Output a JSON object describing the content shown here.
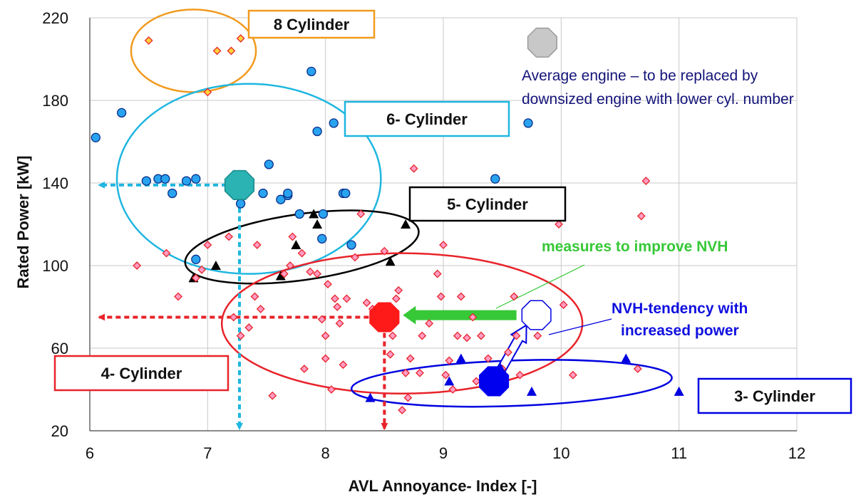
{
  "chart_data": {
    "type": "scatter",
    "title": "",
    "xlabel": "AVL Annoyance- Index [-]",
    "ylabel": "Rated Power [kW]",
    "xlim": [
      6,
      12
    ],
    "ylim": [
      20,
      220
    ],
    "xticks": [
      "6",
      "7",
      "8",
      "9",
      "10",
      "11",
      "12"
    ],
    "yticks": [
      "20",
      "60",
      "100",
      "140",
      "180",
      "220"
    ],
    "grid": true,
    "colors": {
      "four": "#e8232a",
      "four_fill": "#ff9cc4",
      "five": "#000000",
      "six": "#1fb6e0",
      "six_fill": "#29a3ef",
      "eight": "#f29a1e",
      "eight_fill": "#ffd23a",
      "three": "#0000e0",
      "note_blue": "#14147a",
      "nvh_green": "#37c837",
      "nvh_blue": "#1010e0"
    },
    "series": [
      {
        "name": "8 Cylinder",
        "marker": "diamond",
        "points": [
          [
            6.5,
            209
          ],
          [
            7.0,
            184
          ],
          [
            7.08,
            204
          ],
          [
            7.2,
            204
          ],
          [
            7.28,
            210
          ]
        ]
      },
      {
        "name": "6- Cylinder",
        "marker": "circle",
        "points": [
          [
            6.05,
            162
          ],
          [
            6.27,
            174
          ],
          [
            6.48,
            141
          ],
          [
            6.58,
            142
          ],
          [
            6.64,
            142
          ],
          [
            6.7,
            135
          ],
          [
            6.82,
            141
          ],
          [
            6.9,
            142
          ],
          [
            6.9,
            103
          ],
          [
            7.28,
            130
          ],
          [
            7.47,
            135
          ],
          [
            7.52,
            149
          ],
          [
            7.62,
            132
          ],
          [
            7.68,
            134
          ],
          [
            7.68,
            135
          ],
          [
            7.78,
            125
          ],
          [
            7.88,
            194
          ],
          [
            7.93,
            165
          ],
          [
            7.97,
            113
          ],
          [
            7.98,
            125
          ],
          [
            8.07,
            169
          ],
          [
            8.15,
            135
          ],
          [
            8.17,
            135
          ],
          [
            8.22,
            110
          ],
          [
            9.44,
            142
          ],
          [
            9.72,
            169
          ]
        ]
      },
      {
        "name": "5- Cylinder",
        "marker": "triangle",
        "points": [
          [
            6.88,
            94
          ],
          [
            7.07,
            100
          ],
          [
            7.62,
            95
          ],
          [
            7.75,
            110
          ],
          [
            7.9,
            125
          ],
          [
            7.93,
            120
          ],
          [
            8.55,
            102
          ],
          [
            8.68,
            120
          ]
        ]
      },
      {
        "name": "4- Cylinder",
        "marker": "diamond",
        "points": [
          [
            6.4,
            100
          ],
          [
            6.65,
            106
          ],
          [
            6.75,
            85
          ],
          [
            6.9,
            94
          ],
          [
            6.95,
            98
          ],
          [
            7.0,
            110
          ],
          [
            7.18,
            114
          ],
          [
            7.22,
            75
          ],
          [
            7.28,
            66
          ],
          [
            7.35,
            70
          ],
          [
            7.42,
            110
          ],
          [
            7.4,
            85
          ],
          [
            7.45,
            79
          ],
          [
            7.55,
            37
          ],
          [
            7.65,
            96
          ],
          [
            7.7,
            100
          ],
          [
            7.72,
            114
          ],
          [
            7.8,
            106
          ],
          [
            7.82,
            50
          ],
          [
            7.87,
            97
          ],
          [
            7.93,
            96
          ],
          [
            7.97,
            74
          ],
          [
            8.0,
            66
          ],
          [
            8.0,
            55
          ],
          [
            8.02,
            91
          ],
          [
            8.05,
            40
          ],
          [
            8.08,
            84
          ],
          [
            8.1,
            80
          ],
          [
            8.12,
            72
          ],
          [
            8.15,
            52
          ],
          [
            8.18,
            84
          ],
          [
            8.25,
            104
          ],
          [
            8.3,
            125
          ],
          [
            8.35,
            82
          ],
          [
            8.4,
            79
          ],
          [
            8.45,
            70
          ],
          [
            8.5,
            107
          ],
          [
            8.52,
            75
          ],
          [
            8.55,
            57
          ],
          [
            8.57,
            66
          ],
          [
            8.6,
            84
          ],
          [
            8.62,
            88
          ],
          [
            8.65,
            30
          ],
          [
            8.68,
            48
          ],
          [
            8.7,
            36
          ],
          [
            8.72,
            55
          ],
          [
            8.75,
            147
          ],
          [
            8.8,
            48
          ],
          [
            8.82,
            66
          ],
          [
            8.88,
            72
          ],
          [
            8.95,
            96
          ],
          [
            8.98,
            85
          ],
          [
            9.0,
            110
          ],
          [
            9.02,
            47
          ],
          [
            9.05,
            54
          ],
          [
            9.08,
            40
          ],
          [
            9.12,
            66
          ],
          [
            9.15,
            85
          ],
          [
            9.2,
            65
          ],
          [
            9.25,
            75
          ],
          [
            9.28,
            44
          ],
          [
            9.32,
            66
          ],
          [
            9.38,
            55
          ],
          [
            9.45,
            44
          ],
          [
            9.5,
            50
          ],
          [
            9.55,
            58
          ],
          [
            9.6,
            85
          ],
          [
            9.62,
            66
          ],
          [
            9.65,
            47
          ],
          [
            9.8,
            66
          ],
          [
            9.98,
            120
          ],
          [
            10.02,
            81
          ],
          [
            10.1,
            47
          ],
          [
            10.65,
            50
          ],
          [
            10.68,
            124
          ],
          [
            10.72,
            141
          ]
        ]
      },
      {
        "name": "3- Cylinder",
        "marker": "triangle",
        "points": [
          [
            8.38,
            36
          ],
          [
            9.05,
            44
          ],
          [
            9.15,
            55
          ],
          [
            9.48,
            51
          ],
          [
            9.75,
            39
          ],
          [
            10.55,
            55
          ],
          [
            11.0,
            39
          ]
        ]
      }
    ],
    "annotations": {
      "eight_label": "8 Cylinder",
      "six_label": "6- Cylinder",
      "five_label": "5- Cylinder",
      "four_label": "4- Cylinder",
      "three_label": "3- Cylinder",
      "avg_note_line1": "Average engine – to be replaced by",
      "avg_note_line2": "downsized engine with lower cyl. number",
      "nvh_measures": "measures to improve NVH",
      "nvh_tendency_line1": "NVH-tendency with",
      "nvh_tendency_line2": "increased power"
    },
    "average_engines": [
      {
        "cylinders": "6",
        "x": 7.27,
        "y": 139
      },
      {
        "cylinders": "4",
        "x": 8.5,
        "y": 75
      },
      {
        "cylinders": "3",
        "x": 9.43,
        "y": 44
      }
    ]
  }
}
